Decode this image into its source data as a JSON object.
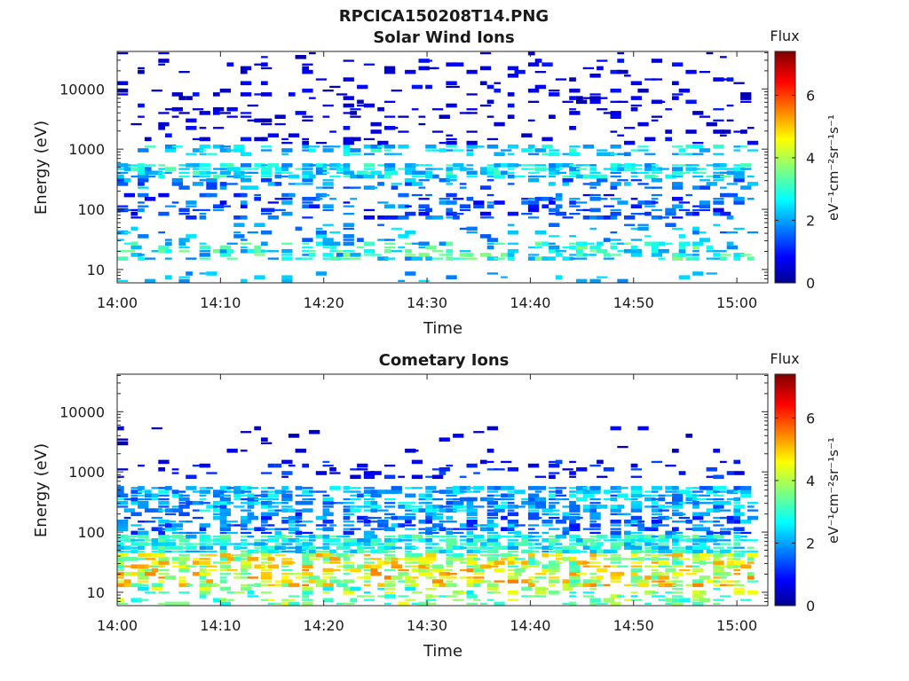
{
  "figure_title": "RPCICA150208T14.PNG",
  "chart_data": [
    {
      "type": "heatmap",
      "title": "Solar Wind Ions",
      "xlabel": "Time",
      "ylabel": "Energy (eV)",
      "x_ticks": [
        "14:00",
        "14:10",
        "14:20",
        "14:30",
        "14:40",
        "14:50",
        "15:00"
      ],
      "xlim": [
        "14:00",
        "15:03"
      ],
      "y_scale": "log",
      "y_ticks": [
        "10",
        "100",
        "1000",
        "10000"
      ],
      "ylim": [
        6,
        42000
      ],
      "colorbar": {
        "title": "Flux",
        "label": "eV⁻¹cm⁻²sr⁻¹s⁻¹",
        "ticks": [
          "0",
          "2",
          "4",
          "6"
        ],
        "range": [
          0,
          7.4
        ],
        "colormap": "jet"
      },
      "bands": [
        {
          "energy": [
            6,
            9
          ],
          "density": 0.12,
          "level": [
            1.8,
            2.6
          ]
        },
        {
          "energy": [
            14,
            30
          ],
          "density": 0.42,
          "level": [
            1.8,
            3.8
          ]
        },
        {
          "energy": [
            30,
            60
          ],
          "density": 0.15,
          "level": [
            1.5,
            2.8
          ]
        },
        {
          "energy": [
            70,
            180
          ],
          "density": 0.28,
          "level": [
            0.8,
            2.2
          ]
        },
        {
          "energy": [
            200,
            320
          ],
          "density": 0.3,
          "level": [
            1.2,
            2.6
          ]
        },
        {
          "energy": [
            320,
            600
          ],
          "density": 0.62,
          "level": [
            1.8,
            3.4
          ]
        },
        {
          "energy": [
            800,
            1200
          ],
          "density": 0.35,
          "level": [
            1.8,
            3.2
          ]
        },
        {
          "energy": [
            1200,
            40000
          ],
          "density": 0.1,
          "level": [
            0.3,
            1.1
          ]
        }
      ]
    },
    {
      "type": "heatmap",
      "title": "Cometary Ions",
      "xlabel": "Time",
      "ylabel": "Energy (eV)",
      "x_ticks": [
        "14:00",
        "14:10",
        "14:20",
        "14:30",
        "14:40",
        "14:50",
        "15:00"
      ],
      "xlim": [
        "14:00",
        "15:03"
      ],
      "y_scale": "log",
      "y_ticks": [
        "10",
        "100",
        "1000",
        "10000"
      ],
      "ylim": [
        6,
        42000
      ],
      "colorbar": {
        "title": "Flux",
        "label": "eV⁻¹cm⁻²sr⁻¹s⁻¹",
        "ticks": [
          "0",
          "2",
          "4",
          "6"
        ],
        "range": [
          0,
          7.4
        ],
        "colormap": "jet"
      },
      "bands": [
        {
          "energy": [
            6,
            12
          ],
          "density": 0.3,
          "level": [
            2.6,
            4.6
          ]
        },
        {
          "energy": [
            12,
            25
          ],
          "density": 0.5,
          "level": [
            3.2,
            5.6
          ]
        },
        {
          "energy": [
            25,
            45
          ],
          "density": 0.6,
          "level": [
            3.0,
            5.4
          ]
        },
        {
          "energy": [
            45,
            90
          ],
          "density": 0.8,
          "level": [
            2.0,
            3.6
          ]
        },
        {
          "energy": [
            90,
            200
          ],
          "density": 0.45,
          "level": [
            1.0,
            2.6
          ]
        },
        {
          "energy": [
            200,
            600
          ],
          "density": 0.55,
          "level": [
            1.4,
            3.0
          ]
        },
        {
          "energy": [
            800,
            1600
          ],
          "density": 0.15,
          "level": [
            0.5,
            1.6
          ]
        },
        {
          "energy": [
            2000,
            7000
          ],
          "density": 0.03,
          "level": [
            0.3,
            1.0
          ]
        }
      ]
    }
  ]
}
